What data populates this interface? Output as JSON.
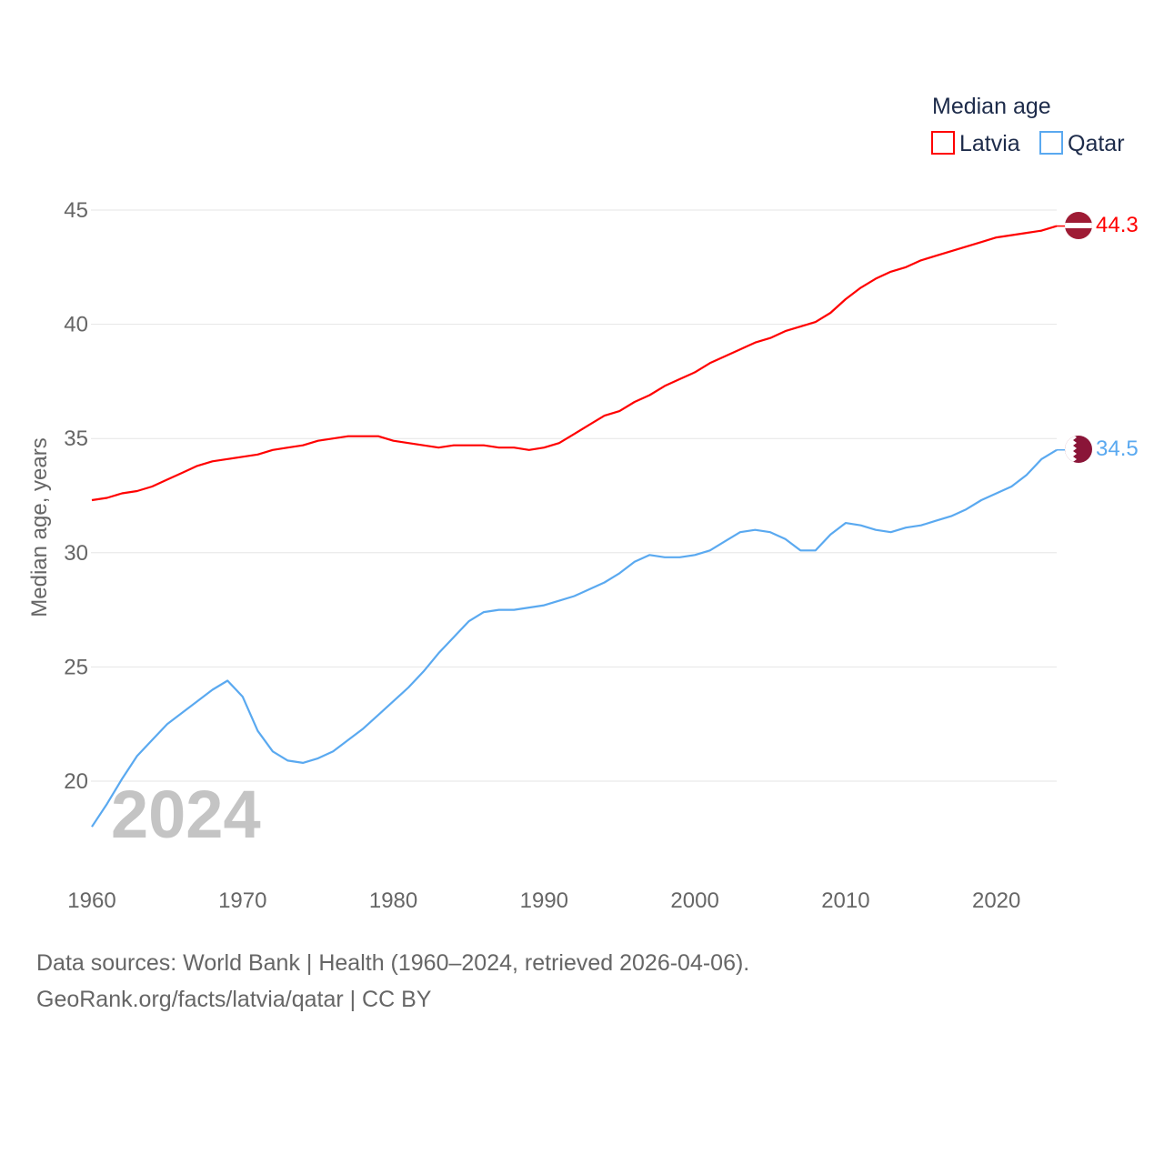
{
  "chart_data": {
    "type": "line",
    "title": "Median age",
    "xlabel": "",
    "ylabel": "Median age, years",
    "xlim": [
      1960,
      2024
    ],
    "ylim": [
      17,
      46
    ],
    "yticks": [
      20,
      25,
      30,
      35,
      40,
      45
    ],
    "xticks": [
      1960,
      1970,
      1980,
      1990,
      2000,
      2010,
      2020
    ],
    "grid": true,
    "legend_placement": "top-right",
    "watermark_year": "2024",
    "x": [
      1960,
      1961,
      1962,
      1963,
      1964,
      1965,
      1966,
      1967,
      1968,
      1969,
      1970,
      1971,
      1972,
      1973,
      1974,
      1975,
      1976,
      1977,
      1978,
      1979,
      1980,
      1981,
      1982,
      1983,
      1984,
      1985,
      1986,
      1987,
      1988,
      1989,
      1990,
      1991,
      1992,
      1993,
      1994,
      1995,
      1996,
      1997,
      1998,
      1999,
      2000,
      2001,
      2002,
      2003,
      2004,
      2005,
      2006,
      2007,
      2008,
      2009,
      2010,
      2011,
      2012,
      2013,
      2014,
      2015,
      2016,
      2017,
      2018,
      2019,
      2020,
      2021,
      2022,
      2023,
      2024
    ],
    "series": [
      {
        "name": "Latvia",
        "color": "#ff0000",
        "end_label": "44.3",
        "values": [
          32.3,
          32.4,
          32.6,
          32.7,
          32.9,
          33.2,
          33.5,
          33.8,
          34.0,
          34.1,
          34.2,
          34.3,
          34.5,
          34.6,
          34.7,
          34.9,
          35.0,
          35.1,
          35.1,
          35.1,
          34.9,
          34.8,
          34.7,
          34.6,
          34.7,
          34.7,
          34.7,
          34.6,
          34.6,
          34.5,
          34.6,
          34.8,
          35.2,
          35.6,
          36.0,
          36.2,
          36.6,
          36.9,
          37.3,
          37.6,
          37.9,
          38.3,
          38.6,
          38.9,
          39.2,
          39.4,
          39.7,
          39.9,
          40.1,
          40.5,
          41.1,
          41.6,
          42.0,
          42.3,
          42.5,
          42.8,
          43.0,
          43.2,
          43.4,
          43.6,
          43.8,
          43.9,
          44.0,
          44.1,
          44.3
        ]
      },
      {
        "name": "Qatar",
        "color": "#5aa9f0",
        "end_label": "34.5",
        "values": [
          18.0,
          19.0,
          20.1,
          21.1,
          21.8,
          22.5,
          23.0,
          23.5,
          24.0,
          24.4,
          23.7,
          22.2,
          21.3,
          20.9,
          20.8,
          21.0,
          21.3,
          21.8,
          22.3,
          22.9,
          23.5,
          24.1,
          24.8,
          25.6,
          26.3,
          27.0,
          27.4,
          27.5,
          27.5,
          27.6,
          27.7,
          27.9,
          28.1,
          28.4,
          28.7,
          29.1,
          29.6,
          29.9,
          29.8,
          29.8,
          29.9,
          30.1,
          30.5,
          30.9,
          31.0,
          30.9,
          30.6,
          30.1,
          30.1,
          30.8,
          31.3,
          31.2,
          31.0,
          30.9,
          31.1,
          31.2,
          31.4,
          31.6,
          31.9,
          32.3,
          32.6,
          32.9,
          33.4,
          34.1,
          34.5
        ]
      }
    ]
  },
  "sources": {
    "line1": "Data sources: World Bank | Health (1960–2024, retrieved 2026-04-06).",
    "line2": "GeoRank.org/facts/latvia/qatar | CC BY"
  }
}
